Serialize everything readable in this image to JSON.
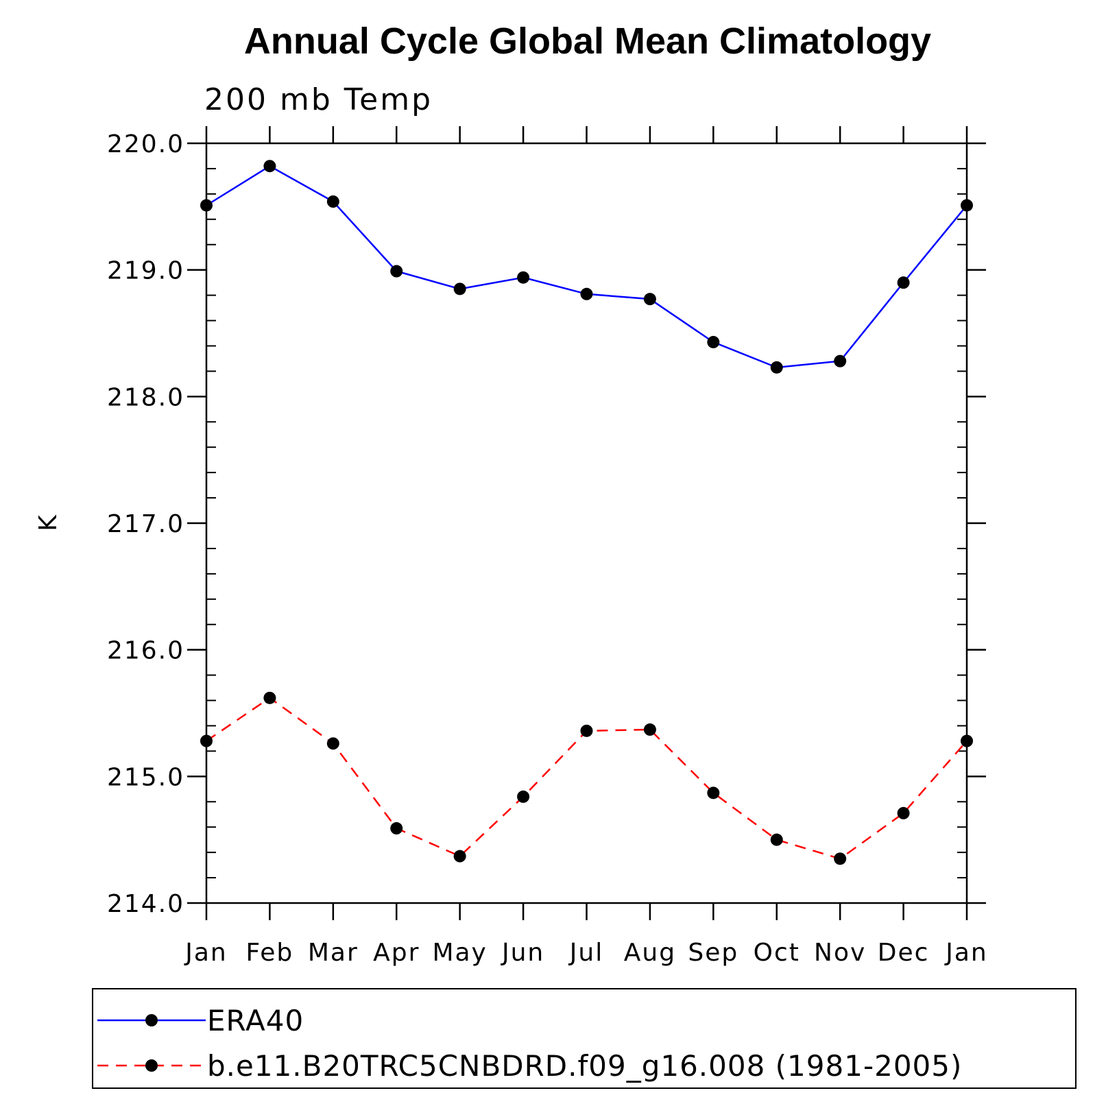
{
  "chart_data": {
    "type": "line",
    "title": "Annual Cycle Global Mean Climatology",
    "subtitle": "200 mb Temp",
    "xlabel": "",
    "ylabel": "K",
    "categories": [
      "Jan",
      "Feb",
      "Mar",
      "Apr",
      "May",
      "Jun",
      "Jul",
      "Aug",
      "Sep",
      "Oct",
      "Nov",
      "Dec",
      "Jan"
    ],
    "ylim": [
      214.0,
      220.0
    ],
    "yticks": [
      "214.0",
      "215.0",
      "216.0",
      "217.0",
      "218.0",
      "219.0",
      "220.0"
    ],
    "grid": false,
    "legend_position": "bottom",
    "series": [
      {
        "name": "ERA40",
        "color": "#0000ff",
        "dash": "solid",
        "marker": "filled-circle",
        "values": [
          219.51,
          219.82,
          219.54,
          218.99,
          218.85,
          218.94,
          218.81,
          218.77,
          218.43,
          218.23,
          218.28,
          218.9,
          219.51
        ]
      },
      {
        "name": "b.e11.B20TRC5CNBDRD.f09_g16.008 (1981-2005)",
        "color": "#ff0000",
        "dash": "dashed",
        "marker": "filled-circle",
        "values": [
          215.28,
          215.62,
          215.26,
          214.59,
          214.37,
          214.84,
          215.36,
          215.37,
          214.87,
          214.5,
          214.35,
          214.71,
          215.28
        ]
      }
    ]
  }
}
